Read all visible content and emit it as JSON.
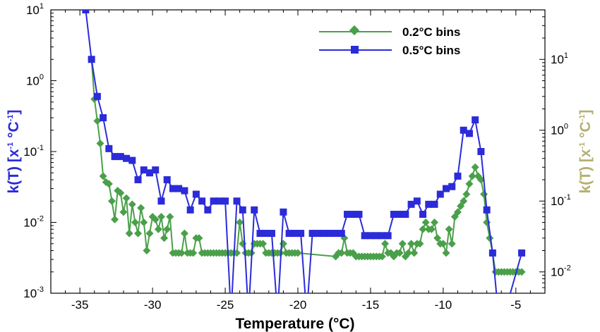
{
  "chart_data": {
    "type": "line",
    "xlabel": "Temperature (°C)",
    "ylabel_left": {
      "main": "k(T)  [x",
      "sup1": "-1",
      "mid": " °C",
      "sup2": "-1",
      "end": "]"
    },
    "ylabel_right": {
      "main": "k(T)  [x",
      "sup1": "-1",
      "mid": " °C",
      "sup2": "-1",
      "end": "]"
    },
    "xlim": [
      -37,
      -3
    ],
    "xticks": [
      -35,
      -30,
      -25,
      -20,
      -15,
      -10,
      -5
    ],
    "y_left": {
      "scale": "log",
      "lim": [
        0.001,
        10
      ],
      "ticks": [
        {
          "v": 0.001,
          "base": "10",
          "exp": "-3"
        },
        {
          "v": 0.01,
          "base": "10",
          "exp": "-2"
        },
        {
          "v": 0.1,
          "base": "10",
          "exp": "-1"
        },
        {
          "v": 1,
          "base": "10",
          "exp": "0"
        },
        {
          "v": 10,
          "base": "10",
          "exp": "1"
        }
      ]
    },
    "y_right": {
      "scale": "log",
      "lim": [
        0.005,
        50
      ],
      "ticks": [
        {
          "v": 0.01,
          "base": "10",
          "exp": "-2"
        },
        {
          "v": 0.1,
          "base": "10",
          "exp": "-1"
        },
        {
          "v": 1,
          "base": "10",
          "exp": "0"
        },
        {
          "v": 10,
          "base": "10",
          "exp": "1"
        }
      ]
    },
    "legend_position": "top-center",
    "colors": {
      "left_axis_title": "#2b2bd9",
      "right_axis_title": "#b5b070"
    },
    "series": [
      {
        "name": "0.2°C bins",
        "color": "#4aa04a",
        "marker": "diamond",
        "points": [
          [
            -34.2,
            2.0
          ],
          [
            -34.0,
            0.55
          ],
          [
            -33.8,
            0.27
          ],
          [
            -33.6,
            0.13
          ],
          [
            -33.4,
            0.045
          ],
          [
            -33.2,
            0.037
          ],
          [
            -33.0,
            0.035
          ],
          [
            -32.8,
            0.02
          ],
          [
            -32.6,
            0.011
          ],
          [
            -32.4,
            0.028
          ],
          [
            -32.2,
            0.026
          ],
          [
            -32.0,
            0.014
          ],
          [
            -31.8,
            0.022
          ],
          [
            -31.6,
            0.007
          ],
          [
            -31.4,
            0.018
          ],
          [
            -31.2,
            0.01
          ],
          [
            -31.0,
            0.007
          ],
          [
            -30.8,
            0.016
          ],
          [
            -30.6,
            0.01
          ],
          [
            -30.4,
            0.004
          ],
          [
            -30.2,
            0.007
          ],
          [
            -30.0,
            0.012
          ],
          [
            -29.8,
            0.011
          ],
          [
            -29.6,
            0.008
          ],
          [
            -29.4,
            0.012
          ],
          [
            -29.2,
            0.006
          ],
          [
            -29.0,
            0.008
          ],
          [
            -28.8,
            0.012
          ],
          [
            -28.6,
            0.0037
          ],
          [
            -28.4,
            0.0037
          ],
          [
            -28.2,
            0.0037
          ],
          [
            -28.0,
            0.0037
          ],
          [
            -27.8,
            0.007
          ],
          [
            -27.6,
            0.0037
          ],
          [
            -27.4,
            0.0037
          ],
          [
            -27.2,
            0.0037
          ],
          [
            -27.0,
            0.006
          ],
          [
            -26.8,
            0.006
          ],
          [
            -26.6,
            0.0037
          ],
          [
            -26.4,
            0.0037
          ],
          [
            -26.2,
            0.0037
          ],
          [
            -26.0,
            0.0037
          ],
          [
            -25.8,
            0.0037
          ],
          [
            -25.6,
            0.0037
          ],
          [
            -25.4,
            0.0037
          ],
          [
            -25.2,
            0.0037
          ],
          [
            -25.0,
            0.0037
          ],
          [
            -24.8,
            0.0037
          ],
          [
            -24.6,
            0.0037
          ],
          [
            -24.4,
            0.0037
          ],
          [
            -24.2,
            0.0037
          ],
          [
            -24.0,
            0.01
          ],
          [
            -23.8,
            0.005
          ],
          [
            -23.6,
            0.0037
          ],
          [
            -23.4,
            0.0037
          ],
          [
            -23.2,
            0.0037
          ],
          [
            -23.0,
            0.005
          ],
          [
            -22.8,
            0.005
          ],
          [
            -22.6,
            0.005
          ],
          [
            -22.4,
            0.005
          ],
          [
            -22.2,
            0.0037
          ],
          [
            -22.0,
            0.0037
          ],
          [
            -21.8,
            0.0037
          ],
          [
            -21.6,
            0.0037
          ],
          [
            -21.4,
            0.0037
          ],
          [
            -21.2,
            0.0037
          ],
          [
            -21.0,
            0.005
          ],
          [
            -20.8,
            0.0037
          ],
          [
            -20.6,
            0.0037
          ],
          [
            -20.4,
            0.0037
          ],
          [
            -20.2,
            0.0037
          ],
          [
            -20.0,
            0.0037
          ],
          [
            -17.4,
            0.0033
          ],
          [
            -17.2,
            0.0037
          ],
          [
            -17.0,
            0.0037
          ],
          [
            -16.8,
            0.006
          ],
          [
            -16.6,
            0.0037
          ],
          [
            -16.4,
            0.0037
          ],
          [
            -16.2,
            0.0037
          ],
          [
            -16.0,
            0.0033
          ],
          [
            -15.8,
            0.0033
          ],
          [
            -15.6,
            0.0033
          ],
          [
            -15.4,
            0.0033
          ],
          [
            -15.2,
            0.0033
          ],
          [
            -15.0,
            0.0033
          ],
          [
            -14.8,
            0.0033
          ],
          [
            -14.6,
            0.0033
          ],
          [
            -14.4,
            0.0033
          ],
          [
            -14.2,
            0.0033
          ],
          [
            -14.0,
            0.005
          ],
          [
            -13.8,
            0.0037
          ],
          [
            -13.6,
            0.0037
          ],
          [
            -13.4,
            0.0033
          ],
          [
            -13.2,
            0.0037
          ],
          [
            -13.0,
            0.0037
          ],
          [
            -12.8,
            0.005
          ],
          [
            -12.6,
            0.0033
          ],
          [
            -12.4,
            0.0037
          ],
          [
            -12.2,
            0.005
          ],
          [
            -12.0,
            0.0037
          ],
          [
            -11.8,
            0.005
          ],
          [
            -11.6,
            0.005
          ],
          [
            -11.4,
            0.008
          ],
          [
            -11.2,
            0.01
          ],
          [
            -11.0,
            0.008
          ],
          [
            -10.8,
            0.008
          ],
          [
            -10.6,
            0.01
          ],
          [
            -10.4,
            0.006
          ],
          [
            -10.2,
            0.005
          ],
          [
            -10.0,
            0.005
          ],
          [
            -9.8,
            0.0037
          ],
          [
            -9.6,
            0.008
          ],
          [
            -9.4,
            0.005
          ],
          [
            -9.2,
            0.012
          ],
          [
            -9.0,
            0.014
          ],
          [
            -8.8,
            0.017
          ],
          [
            -8.6,
            0.02
          ],
          [
            -8.4,
            0.025
          ],
          [
            -8.2,
            0.035
          ],
          [
            -8.0,
            0.045
          ],
          [
            -7.8,
            0.06
          ],
          [
            -7.6,
            0.045
          ],
          [
            -7.4,
            0.04
          ],
          [
            -7.2,
            0.025
          ],
          [
            -7.0,
            0.01
          ],
          [
            -6.8,
            0.006
          ],
          [
            -6.6,
            0.0037
          ],
          [
            -6.4,
            0.002
          ],
          [
            -6.2,
            0.002
          ],
          [
            -6.0,
            0.002
          ],
          [
            -5.8,
            0.002
          ],
          [
            -5.6,
            0.002
          ],
          [
            -5.4,
            0.002
          ],
          [
            -5.2,
            0.002
          ],
          [
            -5.0,
            0.002
          ],
          [
            -4.8,
            0.002
          ],
          [
            -4.6,
            0.002
          ]
        ]
      },
      {
        "name": "0.5°C bins",
        "color": "#2b2bd9",
        "marker": "square",
        "points": [
          [
            -34.6,
            10.0
          ],
          [
            -34.2,
            2.0
          ],
          [
            -33.8,
            0.6
          ],
          [
            -33.4,
            0.3
          ],
          [
            -33.0,
            0.11
          ],
          [
            -32.6,
            0.085
          ],
          [
            -32.2,
            0.085
          ],
          [
            -31.8,
            0.08
          ],
          [
            -31.4,
            0.075
          ],
          [
            -31.0,
            0.04
          ],
          [
            -30.6,
            0.055
          ],
          [
            -30.2,
            0.05
          ],
          [
            -29.8,
            0.055
          ],
          [
            -29.4,
            0.02
          ],
          [
            -29.0,
            0.04
          ],
          [
            -28.6,
            0.03
          ],
          [
            -28.2,
            0.03
          ],
          [
            -27.8,
            0.028
          ],
          [
            -27.4,
            0.015
          ],
          [
            -27.0,
            0.025
          ],
          [
            -26.6,
            0.02
          ],
          [
            -26.2,
            0.015
          ],
          [
            -25.8,
            0.02
          ],
          [
            -25.4,
            0.02
          ],
          [
            -25.0,
            0.02
          ],
          [
            -24.6,
            0.0005
          ],
          [
            -24.2,
            0.02
          ],
          [
            -23.8,
            0.015
          ],
          [
            -23.4,
            0.0005
          ],
          [
            -23.0,
            0.015
          ],
          [
            -22.6,
            0.007
          ],
          [
            -22.2,
            0.007
          ],
          [
            -21.8,
            0.007
          ],
          [
            -21.4,
            0.0005
          ],
          [
            -21.0,
            0.014
          ],
          [
            -20.6,
            0.007
          ],
          [
            -20.2,
            0.007
          ],
          [
            -19.8,
            0.007
          ],
          [
            -19.4,
            0.0005
          ],
          [
            -19.0,
            0.007
          ],
          [
            -18.6,
            0.007
          ],
          [
            -18.2,
            0.007
          ],
          [
            -17.8,
            0.007
          ],
          [
            -17.4,
            0.007
          ],
          [
            -17.0,
            0.007
          ],
          [
            -16.6,
            0.013
          ],
          [
            -16.2,
            0.013
          ],
          [
            -15.8,
            0.013
          ],
          [
            -15.4,
            0.0065
          ],
          [
            -15.0,
            0.0065
          ],
          [
            -14.6,
            0.0065
          ],
          [
            -14.2,
            0.0065
          ],
          [
            -13.8,
            0.0065
          ],
          [
            -13.4,
            0.013
          ],
          [
            -13.0,
            0.013
          ],
          [
            -12.6,
            0.013
          ],
          [
            -12.2,
            0.018
          ],
          [
            -11.8,
            0.02
          ],
          [
            -11.4,
            0.013
          ],
          [
            -11.0,
            0.018
          ],
          [
            -10.6,
            0.018
          ],
          [
            -10.2,
            0.025
          ],
          [
            -9.8,
            0.03
          ],
          [
            -9.4,
            0.032
          ],
          [
            -9.0,
            0.045
          ],
          [
            -8.6,
            0.2
          ],
          [
            -8.2,
            0.18
          ],
          [
            -7.8,
            0.28
          ],
          [
            -7.4,
            0.1
          ],
          [
            -7.0,
            0.015
          ],
          [
            -6.6,
            0.0037
          ],
          [
            -6.2,
            0.0005
          ],
          [
            -5.8,
            0.0005
          ],
          [
            -4.6,
            0.0037
          ]
        ]
      }
    ]
  }
}
